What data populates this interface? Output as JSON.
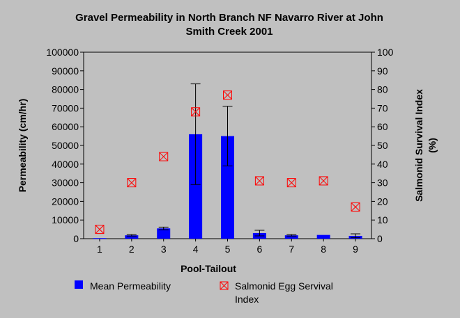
{
  "chart_data": {
    "type": "bar",
    "title_line1": "Gravel Permeability in North Branch NF Navarro River at John",
    "title_line2": "Smith Creek 2001",
    "xlabel": "Pool-Tailout",
    "ylabel": "Permeability (cm/hr)",
    "y2label_line1": "Salmonid Survival Index",
    "y2label_line2": "(%)",
    "categories": [
      "1",
      "2",
      "3",
      "4",
      "5",
      "6",
      "7",
      "8",
      "9"
    ],
    "ylim": [
      0,
      100000
    ],
    "y2lim": [
      0,
      100
    ],
    "yticks": [
      "0",
      "10000",
      "20000",
      "30000",
      "40000",
      "50000",
      "60000",
      "70000",
      "80000",
      "90000",
      "100000"
    ],
    "y2ticks": [
      "0",
      "10",
      "20",
      "30",
      "40",
      "50",
      "60",
      "70",
      "80",
      "90",
      "100"
    ],
    "series": [
      {
        "name": "Mean Permeability",
        "kind": "bar",
        "axis": "left",
        "color": "#0000ff",
        "values": [
          300,
          1800,
          5500,
          56000,
          55000,
          3000,
          1800,
          2000,
          1500
        ],
        "error_low": [
          null,
          1400,
          4800,
          29000,
          39000,
          1500,
          1400,
          null,
          500
        ],
        "error_high": [
          null,
          2200,
          6200,
          83000,
          71000,
          4500,
          2200,
          null,
          2600
        ]
      },
      {
        "name": "Salmonid Egg Servival Index",
        "kind": "marker",
        "axis": "right",
        "color": "#ff0000",
        "values": [
          5,
          30,
          44,
          68,
          77,
          31,
          30,
          31,
          17
        ]
      }
    ],
    "legend": {
      "placement": "bottom",
      "item1_label": "Mean Permeability",
      "item2_label_line1": "Salmonid Egg Servival",
      "item2_label_line2": "Index"
    },
    "grid": false
  }
}
